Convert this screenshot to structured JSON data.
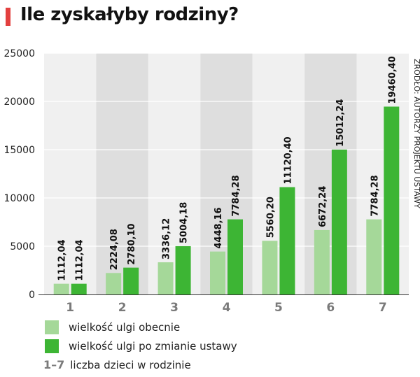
{
  "header": {
    "title": "Ile zyskałyby rodziny?",
    "accent_color": "#e3403f"
  },
  "source": "ŹRÓDŁO: AUTORZY PROJEKTU USTAWY",
  "legend": {
    "items": [
      {
        "label": "wielkość ulgi obecnie",
        "color": "#a5d899"
      },
      {
        "label": "wielkość ulgi po zmianie ustawy",
        "color": "#3db534"
      }
    ],
    "range_label": "1–7",
    "range_text": "liczba dzieci w rodzinie"
  },
  "chart_data": {
    "type": "bar",
    "title": "Ile zyskałyby rodziny?",
    "categories": [
      "1",
      "2",
      "3",
      "4",
      "5",
      "6",
      "7"
    ],
    "series": [
      {
        "name": "wielkość ulgi obecnie",
        "color": "#a5d899",
        "values": [
          1112.04,
          2224.08,
          3336.12,
          4448.16,
          5560.2,
          6672.24,
          7784.28
        ],
        "labels": [
          "1112,04",
          "2224,08",
          "3336,12",
          "4448,16",
          "5560,20",
          "6672,24",
          "7784,28"
        ]
      },
      {
        "name": "wielkość ulgi po zmianie ustawy",
        "color": "#3db534",
        "values": [
          1112.04,
          2780.1,
          5004.18,
          7784.28,
          11120.4,
          15012.24,
          19460.4
        ],
        "labels": [
          "1112,04",
          "2780,10",
          "5004,18",
          "7784,28",
          "11120,40",
          "15012,24",
          "19460,40"
        ]
      }
    ],
    "yticks": [
      0,
      5000,
      10000,
      15000,
      20000,
      25000
    ],
    "ylim": [
      0,
      25000
    ],
    "grid": true,
    "xlabel": "",
    "ylabel": "",
    "band_colors": [
      "#f0f0f0",
      "#dedede"
    ]
  }
}
